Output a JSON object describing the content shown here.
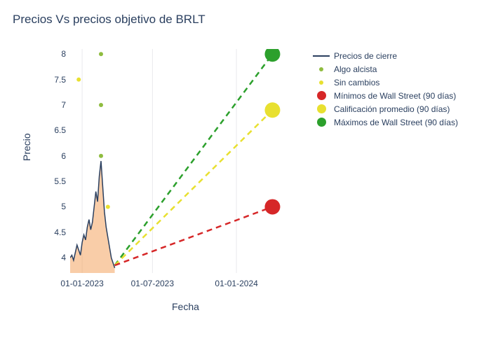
{
  "title": "Precios Vs precios objetivo de BRLT",
  "y_axis_label": "Precio",
  "x_axis_label": "Fecha",
  "chart": {
    "type": "line+scatter+area",
    "background_color": "#ffffff",
    "grid_color": "#e9e9ec",
    "text_color": "#2a3f5f",
    "title_fontsize": 17,
    "label_fontsize": 14,
    "tick_fontsize": 12,
    "y_axis": {
      "min": 3.7,
      "max": 8.1,
      "ticks": [
        4,
        4.5,
        5,
        5.5,
        6,
        6.5,
        7,
        7.5,
        8
      ],
      "tick_labels": [
        "4",
        "4.5",
        "5",
        "5.5",
        "6",
        "6.5",
        "7",
        "7.5",
        "8"
      ]
    },
    "x_axis": {
      "min": 0,
      "max": 1.35,
      "ticks": [
        0.07,
        0.48,
        0.97
      ],
      "tick_labels": [
        "01-01-2023",
        "01-07-2023",
        "01-01-2024"
      ]
    },
    "price_line": {
      "color": "#2a3f5f",
      "fill": "#f4a460",
      "fill_opacity": 0.55,
      "width": 1.5,
      "points": [
        [
          0.0,
          4.0
        ],
        [
          0.01,
          4.05
        ],
        [
          0.02,
          3.95
        ],
        [
          0.03,
          4.1
        ],
        [
          0.04,
          4.25
        ],
        [
          0.05,
          4.15
        ],
        [
          0.06,
          4.05
        ],
        [
          0.07,
          4.3
        ],
        [
          0.08,
          4.45
        ],
        [
          0.09,
          4.35
        ],
        [
          0.1,
          4.6
        ],
        [
          0.11,
          4.75
        ],
        [
          0.12,
          4.55
        ],
        [
          0.13,
          4.7
        ],
        [
          0.14,
          5.0
        ],
        [
          0.15,
          5.3
        ],
        [
          0.16,
          5.1
        ],
        [
          0.17,
          5.6
        ],
        [
          0.18,
          5.9
        ],
        [
          0.19,
          5.4
        ],
        [
          0.2,
          4.9
        ],
        [
          0.21,
          4.6
        ],
        [
          0.22,
          4.4
        ],
        [
          0.23,
          4.2
        ],
        [
          0.24,
          4.0
        ],
        [
          0.25,
          3.9
        ],
        [
          0.26,
          3.8
        ]
      ]
    },
    "analyst_dots": {
      "bullish": {
        "color": "#8fbc3f",
        "size": 6,
        "points": [
          [
            0.18,
            8.0
          ],
          [
            0.18,
            7.0
          ],
          [
            0.18,
            6.0
          ]
        ]
      },
      "no_change": {
        "color": "#e8e030",
        "size": 6,
        "points": [
          [
            0.05,
            7.5
          ],
          [
            0.22,
            5.0
          ]
        ]
      }
    },
    "projections": {
      "start": [
        0.26,
        3.85
      ],
      "end_x": 1.18,
      "dash": "8,6",
      "dash_width": 2.5,
      "lines": [
        {
          "key": "max",
          "end_y": 8.0,
          "color": "#2ca02c",
          "marker_size": 22
        },
        {
          "key": "avg",
          "end_y": 6.9,
          "color": "#e8e030",
          "marker_size": 22
        },
        {
          "key": "min",
          "end_y": 5.0,
          "color": "#d62728",
          "marker_size": 22
        }
      ]
    }
  },
  "legend": {
    "items": [
      {
        "key": "close",
        "label": "Precios de cierre",
        "type": "line",
        "color": "#2a3f5f"
      },
      {
        "key": "bull",
        "label": "Algo alcista",
        "type": "dot-sm",
        "color": "#8fbc3f"
      },
      {
        "key": "nc",
        "label": "Sin cambios",
        "type": "dot-sm",
        "color": "#e8e030"
      },
      {
        "key": "min",
        "label": "Mínimos de Wall Street (90 días)",
        "type": "dot-lg",
        "color": "#d62728"
      },
      {
        "key": "avg",
        "label": "Calificación promedio (90 días)",
        "type": "dot-lg",
        "color": "#e8e030"
      },
      {
        "key": "max",
        "label": "Máximos de Wall Street (90 días)",
        "type": "dot-lg",
        "color": "#2ca02c"
      }
    ]
  }
}
